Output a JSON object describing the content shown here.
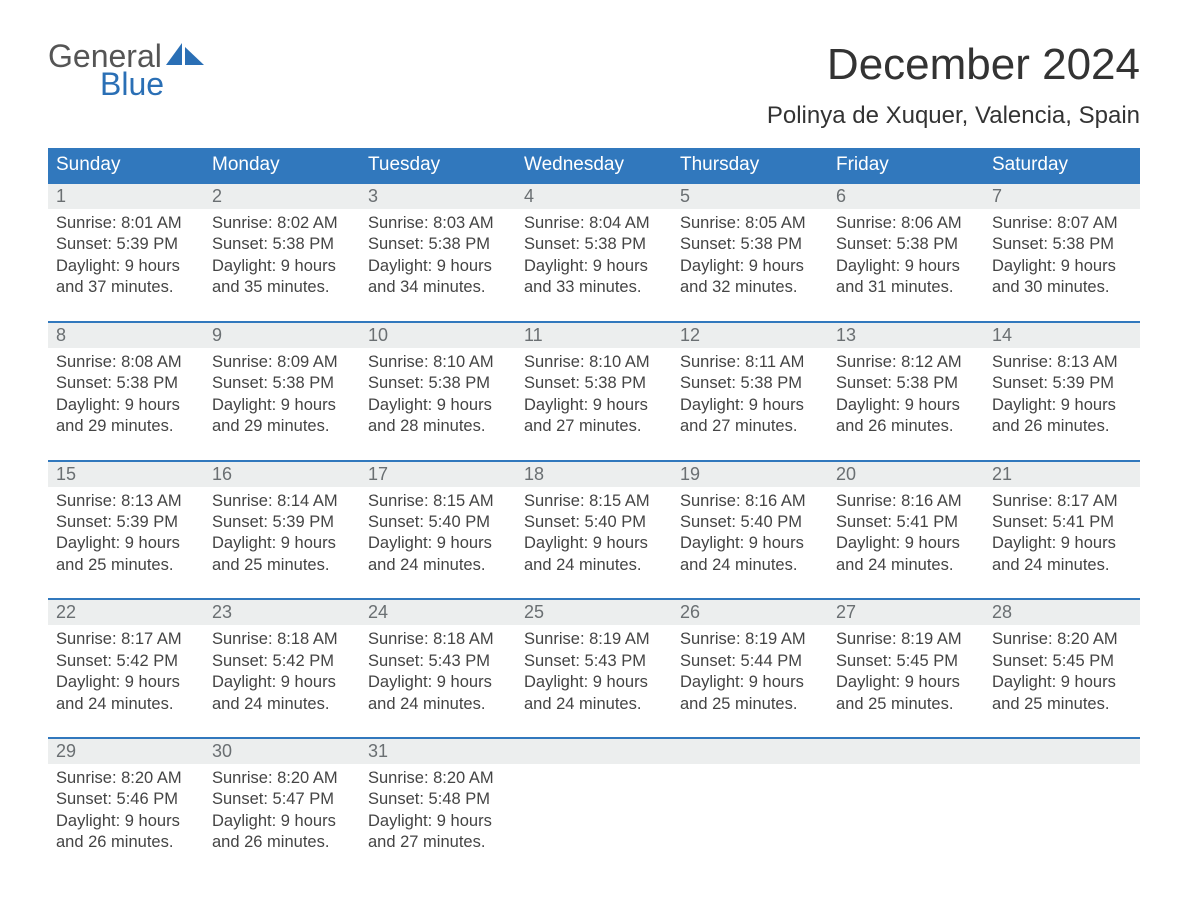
{
  "logo": {
    "word1": "General",
    "word2": "Blue",
    "accent_color": "#2a6fb5",
    "text_color": "#555555"
  },
  "title": "December 2024",
  "location": "Polinya de Xuquer, Valencia, Spain",
  "colors": {
    "header_bg": "#3178bd",
    "header_text": "#ffffff",
    "daynum_bg": "#eceeee",
    "daynum_text": "#6a6f72",
    "body_text": "#444444",
    "week_border": "#3178bd",
    "page_bg": "#ffffff"
  },
  "typography": {
    "title_fontsize": 44,
    "location_fontsize": 24,
    "weekday_fontsize": 19,
    "daynum_fontsize": 18,
    "body_fontsize": 16.5,
    "font_family": "Arial"
  },
  "weekdays": [
    "Sunday",
    "Monday",
    "Tuesday",
    "Wednesday",
    "Thursday",
    "Friday",
    "Saturday"
  ],
  "labels": {
    "sunrise": "Sunrise:",
    "sunset": "Sunset:",
    "daylight": "Daylight:"
  },
  "weeks": [
    [
      {
        "num": "1",
        "sunrise": "8:01 AM",
        "sunset": "5:39 PM",
        "daylight1": "9 hours",
        "daylight2": "and 37 minutes."
      },
      {
        "num": "2",
        "sunrise": "8:02 AM",
        "sunset": "5:38 PM",
        "daylight1": "9 hours",
        "daylight2": "and 35 minutes."
      },
      {
        "num": "3",
        "sunrise": "8:03 AM",
        "sunset": "5:38 PM",
        "daylight1": "9 hours",
        "daylight2": "and 34 minutes."
      },
      {
        "num": "4",
        "sunrise": "8:04 AM",
        "sunset": "5:38 PM",
        "daylight1": "9 hours",
        "daylight2": "and 33 minutes."
      },
      {
        "num": "5",
        "sunrise": "8:05 AM",
        "sunset": "5:38 PM",
        "daylight1": "9 hours",
        "daylight2": "and 32 minutes."
      },
      {
        "num": "6",
        "sunrise": "8:06 AM",
        "sunset": "5:38 PM",
        "daylight1": "9 hours",
        "daylight2": "and 31 minutes."
      },
      {
        "num": "7",
        "sunrise": "8:07 AM",
        "sunset": "5:38 PM",
        "daylight1": "9 hours",
        "daylight2": "and 30 minutes."
      }
    ],
    [
      {
        "num": "8",
        "sunrise": "8:08 AM",
        "sunset": "5:38 PM",
        "daylight1": "9 hours",
        "daylight2": "and 29 minutes."
      },
      {
        "num": "9",
        "sunrise": "8:09 AM",
        "sunset": "5:38 PM",
        "daylight1": "9 hours",
        "daylight2": "and 29 minutes."
      },
      {
        "num": "10",
        "sunrise": "8:10 AM",
        "sunset": "5:38 PM",
        "daylight1": "9 hours",
        "daylight2": "and 28 minutes."
      },
      {
        "num": "11",
        "sunrise": "8:10 AM",
        "sunset": "5:38 PM",
        "daylight1": "9 hours",
        "daylight2": "and 27 minutes."
      },
      {
        "num": "12",
        "sunrise": "8:11 AM",
        "sunset": "5:38 PM",
        "daylight1": "9 hours",
        "daylight2": "and 27 minutes."
      },
      {
        "num": "13",
        "sunrise": "8:12 AM",
        "sunset": "5:38 PM",
        "daylight1": "9 hours",
        "daylight2": "and 26 minutes."
      },
      {
        "num": "14",
        "sunrise": "8:13 AM",
        "sunset": "5:39 PM",
        "daylight1": "9 hours",
        "daylight2": "and 26 minutes."
      }
    ],
    [
      {
        "num": "15",
        "sunrise": "8:13 AM",
        "sunset": "5:39 PM",
        "daylight1": "9 hours",
        "daylight2": "and 25 minutes."
      },
      {
        "num": "16",
        "sunrise": "8:14 AM",
        "sunset": "5:39 PM",
        "daylight1": "9 hours",
        "daylight2": "and 25 minutes."
      },
      {
        "num": "17",
        "sunrise": "8:15 AM",
        "sunset": "5:40 PM",
        "daylight1": "9 hours",
        "daylight2": "and 24 minutes."
      },
      {
        "num": "18",
        "sunrise": "8:15 AM",
        "sunset": "5:40 PM",
        "daylight1": "9 hours",
        "daylight2": "and 24 minutes."
      },
      {
        "num": "19",
        "sunrise": "8:16 AM",
        "sunset": "5:40 PM",
        "daylight1": "9 hours",
        "daylight2": "and 24 minutes."
      },
      {
        "num": "20",
        "sunrise": "8:16 AM",
        "sunset": "5:41 PM",
        "daylight1": "9 hours",
        "daylight2": "and 24 minutes."
      },
      {
        "num": "21",
        "sunrise": "8:17 AM",
        "sunset": "5:41 PM",
        "daylight1": "9 hours",
        "daylight2": "and 24 minutes."
      }
    ],
    [
      {
        "num": "22",
        "sunrise": "8:17 AM",
        "sunset": "5:42 PM",
        "daylight1": "9 hours",
        "daylight2": "and 24 minutes."
      },
      {
        "num": "23",
        "sunrise": "8:18 AM",
        "sunset": "5:42 PM",
        "daylight1": "9 hours",
        "daylight2": "and 24 minutes."
      },
      {
        "num": "24",
        "sunrise": "8:18 AM",
        "sunset": "5:43 PM",
        "daylight1": "9 hours",
        "daylight2": "and 24 minutes."
      },
      {
        "num": "25",
        "sunrise": "8:19 AM",
        "sunset": "5:43 PM",
        "daylight1": "9 hours",
        "daylight2": "and 24 minutes."
      },
      {
        "num": "26",
        "sunrise": "8:19 AM",
        "sunset": "5:44 PM",
        "daylight1": "9 hours",
        "daylight2": "and 25 minutes."
      },
      {
        "num": "27",
        "sunrise": "8:19 AM",
        "sunset": "5:45 PM",
        "daylight1": "9 hours",
        "daylight2": "and 25 minutes."
      },
      {
        "num": "28",
        "sunrise": "8:20 AM",
        "sunset": "5:45 PM",
        "daylight1": "9 hours",
        "daylight2": "and 25 minutes."
      }
    ],
    [
      {
        "num": "29",
        "sunrise": "8:20 AM",
        "sunset": "5:46 PM",
        "daylight1": "9 hours",
        "daylight2": "and 26 minutes."
      },
      {
        "num": "30",
        "sunrise": "8:20 AM",
        "sunset": "5:47 PM",
        "daylight1": "9 hours",
        "daylight2": "and 26 minutes."
      },
      {
        "num": "31",
        "sunrise": "8:20 AM",
        "sunset": "5:48 PM",
        "daylight1": "9 hours",
        "daylight2": "and 27 minutes."
      }
    ]
  ]
}
